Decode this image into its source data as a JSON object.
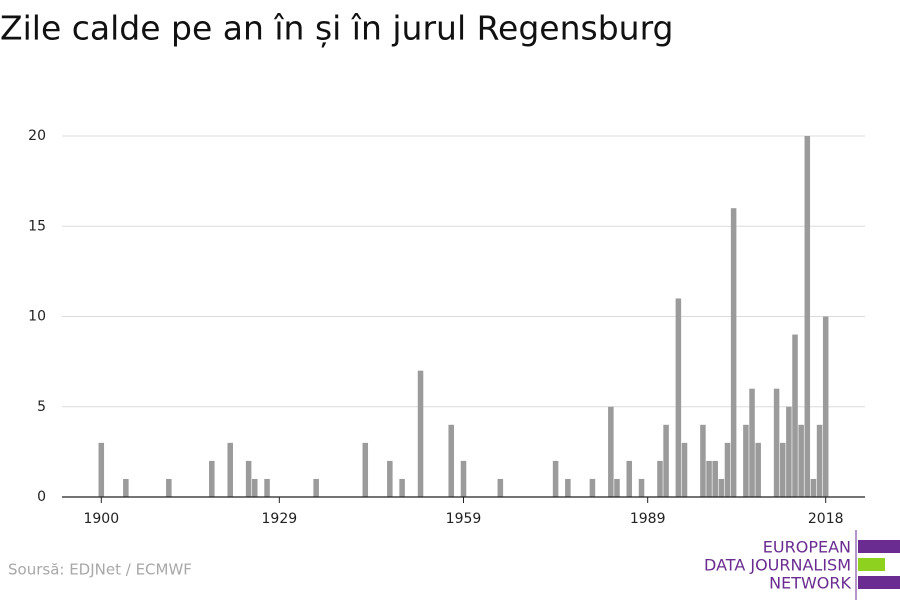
{
  "chart_data": {
    "type": "bar",
    "title": "Zile calde pe an în și în jurul Regensburg",
    "source": "Soursă: EDJNet / ECMWF",
    "logo": [
      "EUROPEAN",
      "DATA JOURNALISM",
      "NETWORK"
    ],
    "x": [
      1900,
      1904,
      1911,
      1918,
      1921,
      1924,
      1925,
      1927,
      1935,
      1943,
      1947,
      1949,
      1952,
      1957,
      1959,
      1965,
      1974,
      1976,
      1980,
      1983,
      1984,
      1986,
      1988,
      1991,
      1992,
      1994,
      1995,
      1998,
      1999,
      2000,
      2001,
      2002,
      2003,
      2005,
      2006,
      2007,
      2010,
      2011,
      2012,
      2013,
      2014,
      2015,
      2016,
      2017,
      2018
    ],
    "values": [
      3,
      1,
      1,
      2,
      3,
      2,
      1,
      1,
      1,
      3,
      2,
      1,
      7,
      4,
      2,
      1,
      2,
      1,
      1,
      5,
      1,
      2,
      1,
      2,
      4,
      11,
      3,
      4,
      2,
      2,
      1,
      3,
      16,
      4,
      6,
      3,
      6,
      3,
      5,
      9,
      4,
      20,
      1,
      4,
      10
    ],
    "color": "#9b9b9b",
    "xlim": [
      1893.6,
      2024.4
    ],
    "xticks": [
      1900,
      1929,
      1959,
      1989,
      2018
    ],
    "ylim": [
      0,
      20
    ],
    "yticks": [
      0,
      5,
      10,
      15,
      20
    ],
    "grid": true
  }
}
